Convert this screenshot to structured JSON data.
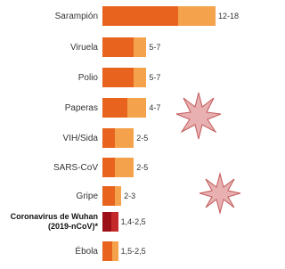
{
  "chart_data": {
    "type": "range-bar",
    "categories": [
      "Sarampión",
      "Viruela",
      "Polio",
      "Paperas",
      "VIH/Sida",
      "SARS-CoV",
      "Gripe",
      "Coronavirus de Wuhan (2019-nCoV)*",
      "Ébola"
    ],
    "low": [
      12,
      5,
      5,
      4,
      2,
      2,
      2,
      1.4,
      1.5
    ],
    "high": [
      18,
      7,
      7,
      7,
      5,
      5,
      3,
      2.5,
      2.5
    ],
    "value_labels": [
      "12-18",
      "5-7",
      "5-7",
      "4-7",
      "2-5",
      "2-5",
      "2-3",
      "1,4-2,5",
      "1,5-2,5"
    ],
    "colors": [
      "#e8641e",
      "#f4a24c"
    ],
    "highlight_index": 7,
    "highlight_colors": [
      "#9e1018",
      "#c42a2a"
    ]
  }
}
